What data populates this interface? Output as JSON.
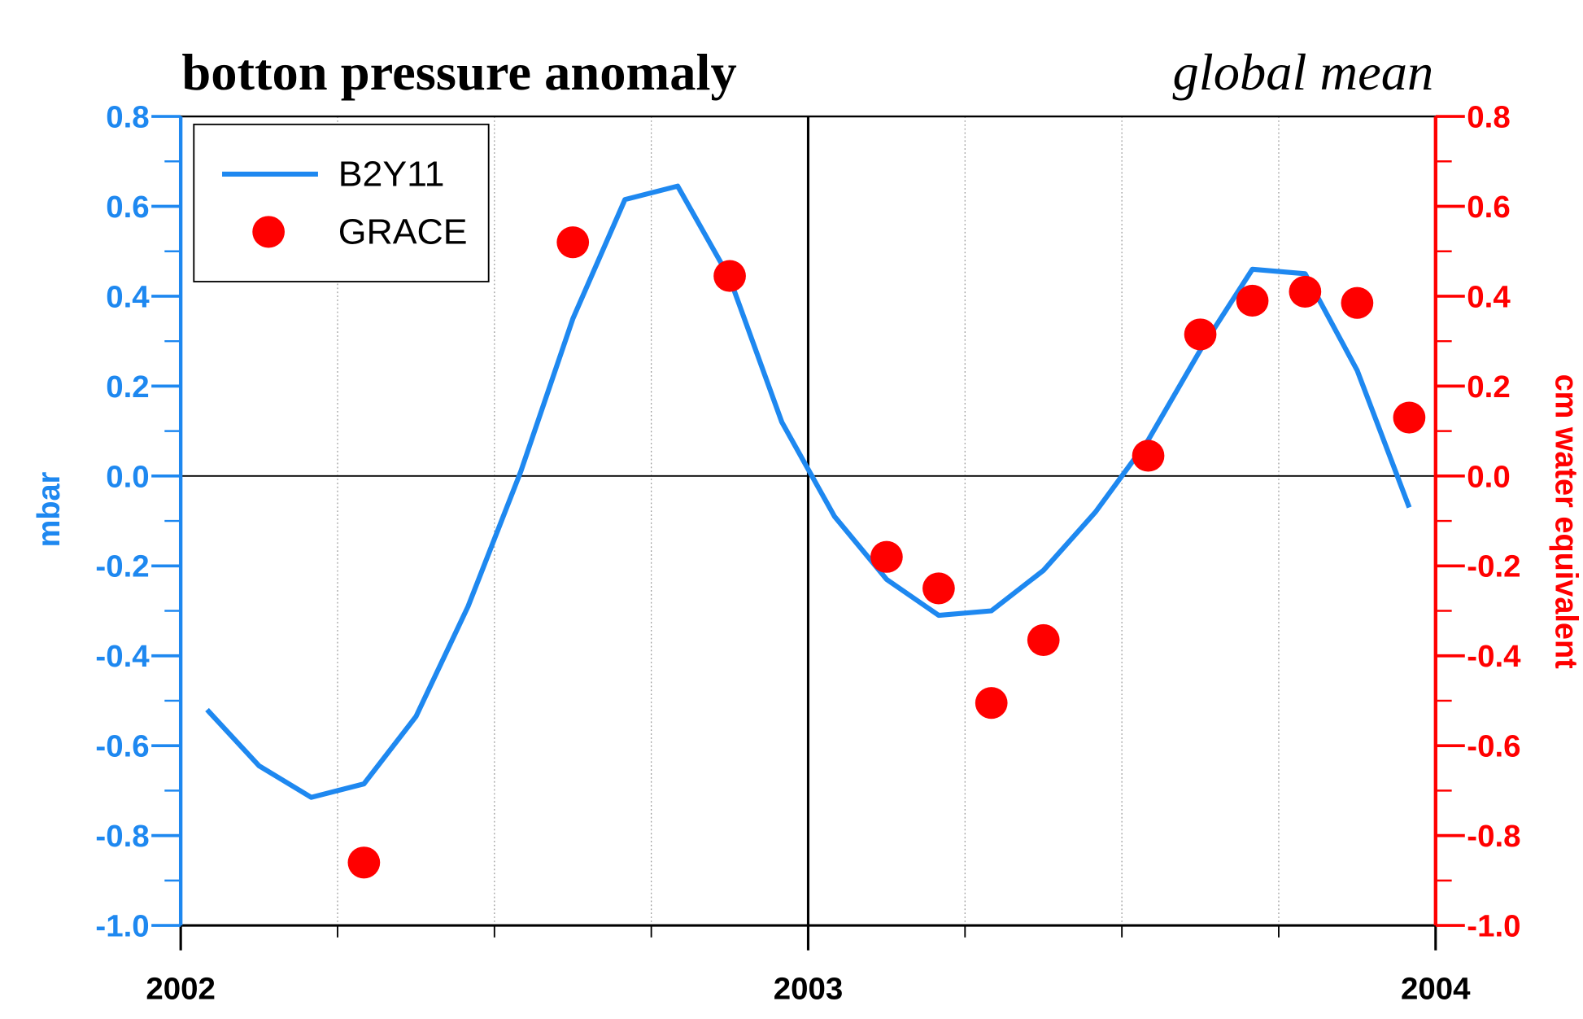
{
  "chart_data": {
    "type": "line",
    "title": "botton pressure anomaly",
    "subtitle": "global mean",
    "y_label": "mbar",
    "y2_label": "cm water equivalent",
    "x": [
      2002.042,
      2002.125,
      2002.208,
      2002.292,
      2002.375,
      2002.458,
      2002.542,
      2002.625,
      2002.708,
      2002.792,
      2002.875,
      2002.958,
      2003.042,
      2003.125,
      2003.208,
      2003.292,
      2003.375,
      2003.458,
      2003.542,
      2003.625,
      2003.708,
      2003.792,
      2003.875,
      2003.958
    ],
    "series": [
      {
        "name": "B2Y11",
        "color": "#1e88f0",
        "type": "line",
        "values": [
          -0.52,
          -0.645,
          -0.715,
          -0.685,
          -0.535,
          -0.29,
          0.01,
          0.35,
          0.615,
          0.645,
          0.44,
          0.12,
          -0.09,
          -0.23,
          -0.31,
          -0.3,
          -0.21,
          -0.08,
          0.08,
          0.28,
          0.46,
          0.45,
          0.235,
          -0.07
        ]
      },
      {
        "name": "GRACE",
        "color": "#ff0000",
        "type": "scatter",
        "axis": "y2",
        "values": [
          null,
          null,
          null,
          -0.86,
          null,
          null,
          null,
          0.52,
          null,
          null,
          0.445,
          null,
          null,
          -0.18,
          -0.25,
          -0.505,
          -0.365,
          null,
          0.045,
          0.315,
          0.39,
          0.41,
          0.385,
          0.13
        ]
      }
    ],
    "xlim": [
      2002,
      2004
    ],
    "xticks": [
      2002,
      2003,
      2004
    ],
    "xminorticks": [
      2002.25,
      2002.5,
      2002.75,
      2003.25,
      2003.5,
      2003.75
    ],
    "ylim": [
      -1.0,
      0.8
    ],
    "yticks": [
      {
        "value": -1.0,
        "label": "-1.0"
      },
      -0.8,
      -0.6,
      -0.4,
      -0.2,
      {
        "value": 0,
        "label": "0.0"
      },
      0.2,
      0.4,
      0.6,
      0.8
    ],
    "y2lim": [
      -1.0,
      0.8
    ],
    "y2ticks": [
      {
        "value": -1.0,
        "label": "-1.0"
      },
      -0.8,
      -0.6,
      -0.4,
      -0.2,
      {
        "value": 0,
        "label": "0.0"
      },
      0.2,
      0.4,
      0.6,
      0.8
    ],
    "yminorticks": [
      -0.9,
      -0.7,
      -0.5,
      -0.3,
      -0.1,
      0.1,
      0.3,
      0.5,
      0.7
    ],
    "xref": 2003,
    "yref": 0,
    "y_axis_color": "#1e88f0",
    "y2_axis_color": "#ff0000",
    "legend": "upper left",
    "grid": true
  }
}
